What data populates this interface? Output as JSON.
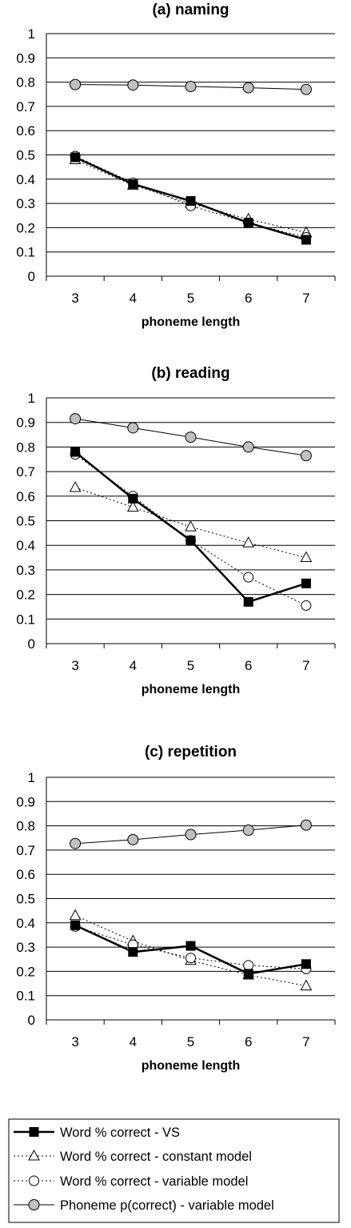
{
  "chart_data": [
    {
      "type": "line",
      "title": "(a) naming",
      "xlabel": "phoneme length",
      "ylabel": "",
      "categories": [
        "3",
        "4",
        "5",
        "6",
        "7"
      ],
      "yticks": [
        "0",
        "0.1",
        "0.2",
        "0.3",
        "0.4",
        "0.5",
        "0.6",
        "0.7",
        "0.8",
        "0.9",
        "1"
      ],
      "ylim": [
        0,
        1
      ],
      "grid": true,
      "series": [
        {
          "key": "vs",
          "values": [
            0.49,
            0.38,
            0.31,
            0.22,
            0.15
          ]
        },
        {
          "key": "constant",
          "values": [
            0.48,
            0.375,
            0.3,
            0.235,
            0.18
          ]
        },
        {
          "key": "variable",
          "values": [
            0.495,
            0.385,
            0.29,
            0.22,
            0.16
          ]
        },
        {
          "key": "phoneme",
          "values": [
            0.79,
            0.788,
            0.782,
            0.777,
            0.77
          ]
        }
      ]
    },
    {
      "type": "line",
      "title": "(b) reading",
      "xlabel": "phoneme length",
      "ylabel": "",
      "categories": [
        "3",
        "4",
        "5",
        "6",
        "7"
      ],
      "yticks": [
        "0",
        "0.1",
        "0.2",
        "0.3",
        "0.4",
        "0.5",
        "0.6",
        "0.7",
        "0.8",
        "0.9",
        "1"
      ],
      "ylim": [
        0,
        1
      ],
      "grid": true,
      "series": [
        {
          "key": "vs",
          "values": [
            0.78,
            0.59,
            0.42,
            0.17,
            0.245
          ]
        },
        {
          "key": "constant",
          "values": [
            0.635,
            0.555,
            0.475,
            0.41,
            0.35
          ]
        },
        {
          "key": "variable",
          "values": [
            0.77,
            0.6,
            0.42,
            0.27,
            0.155
          ]
        },
        {
          "key": "phoneme",
          "values": [
            0.915,
            0.878,
            0.84,
            0.8,
            0.765
          ]
        }
      ]
    },
    {
      "type": "line",
      "title": "(c) repetition",
      "xlabel": "phoneme length",
      "ylabel": "",
      "categories": [
        "3",
        "4",
        "5",
        "6",
        "7"
      ],
      "yticks": [
        "0",
        "0.1",
        "0.2",
        "0.3",
        "0.4",
        "0.5",
        "0.6",
        "0.7",
        "0.8",
        "0.9",
        "1"
      ],
      "ylim": [
        0,
        1
      ],
      "grid": true,
      "series": [
        {
          "key": "vs",
          "values": [
            0.39,
            0.28,
            0.305,
            0.19,
            0.23
          ]
        },
        {
          "key": "constant",
          "values": [
            0.43,
            0.325,
            0.245,
            0.185,
            0.14
          ]
        },
        {
          "key": "variable",
          "values": [
            0.385,
            0.31,
            0.255,
            0.225,
            0.21
          ]
        },
        {
          "key": "phoneme",
          "values": [
            0.727,
            0.743,
            0.764,
            0.782,
            0.803
          ]
        }
      ]
    }
  ],
  "legend": {
    "placement": "bottom",
    "items": [
      {
        "key": "vs",
        "label": "Word % correct - VS"
      },
      {
        "key": "constant",
        "label": "Word % correct - constant model"
      },
      {
        "key": "variable",
        "label": "Word % correct - variable model"
      },
      {
        "key": "phoneme",
        "label": "Phoneme p(correct) - variable model"
      }
    ]
  },
  "colors": {
    "line": "#000000",
    "grid": "#000000",
    "filled_square": "#000000",
    "open_marker": "#ffffff",
    "phoneme_marker": "#c0c0c0"
  },
  "marker_icons": {
    "vs": "filled-square-marker",
    "constant": "open-triangle-marker",
    "variable": "open-circle-marker",
    "phoneme": "grey-circle-marker"
  }
}
